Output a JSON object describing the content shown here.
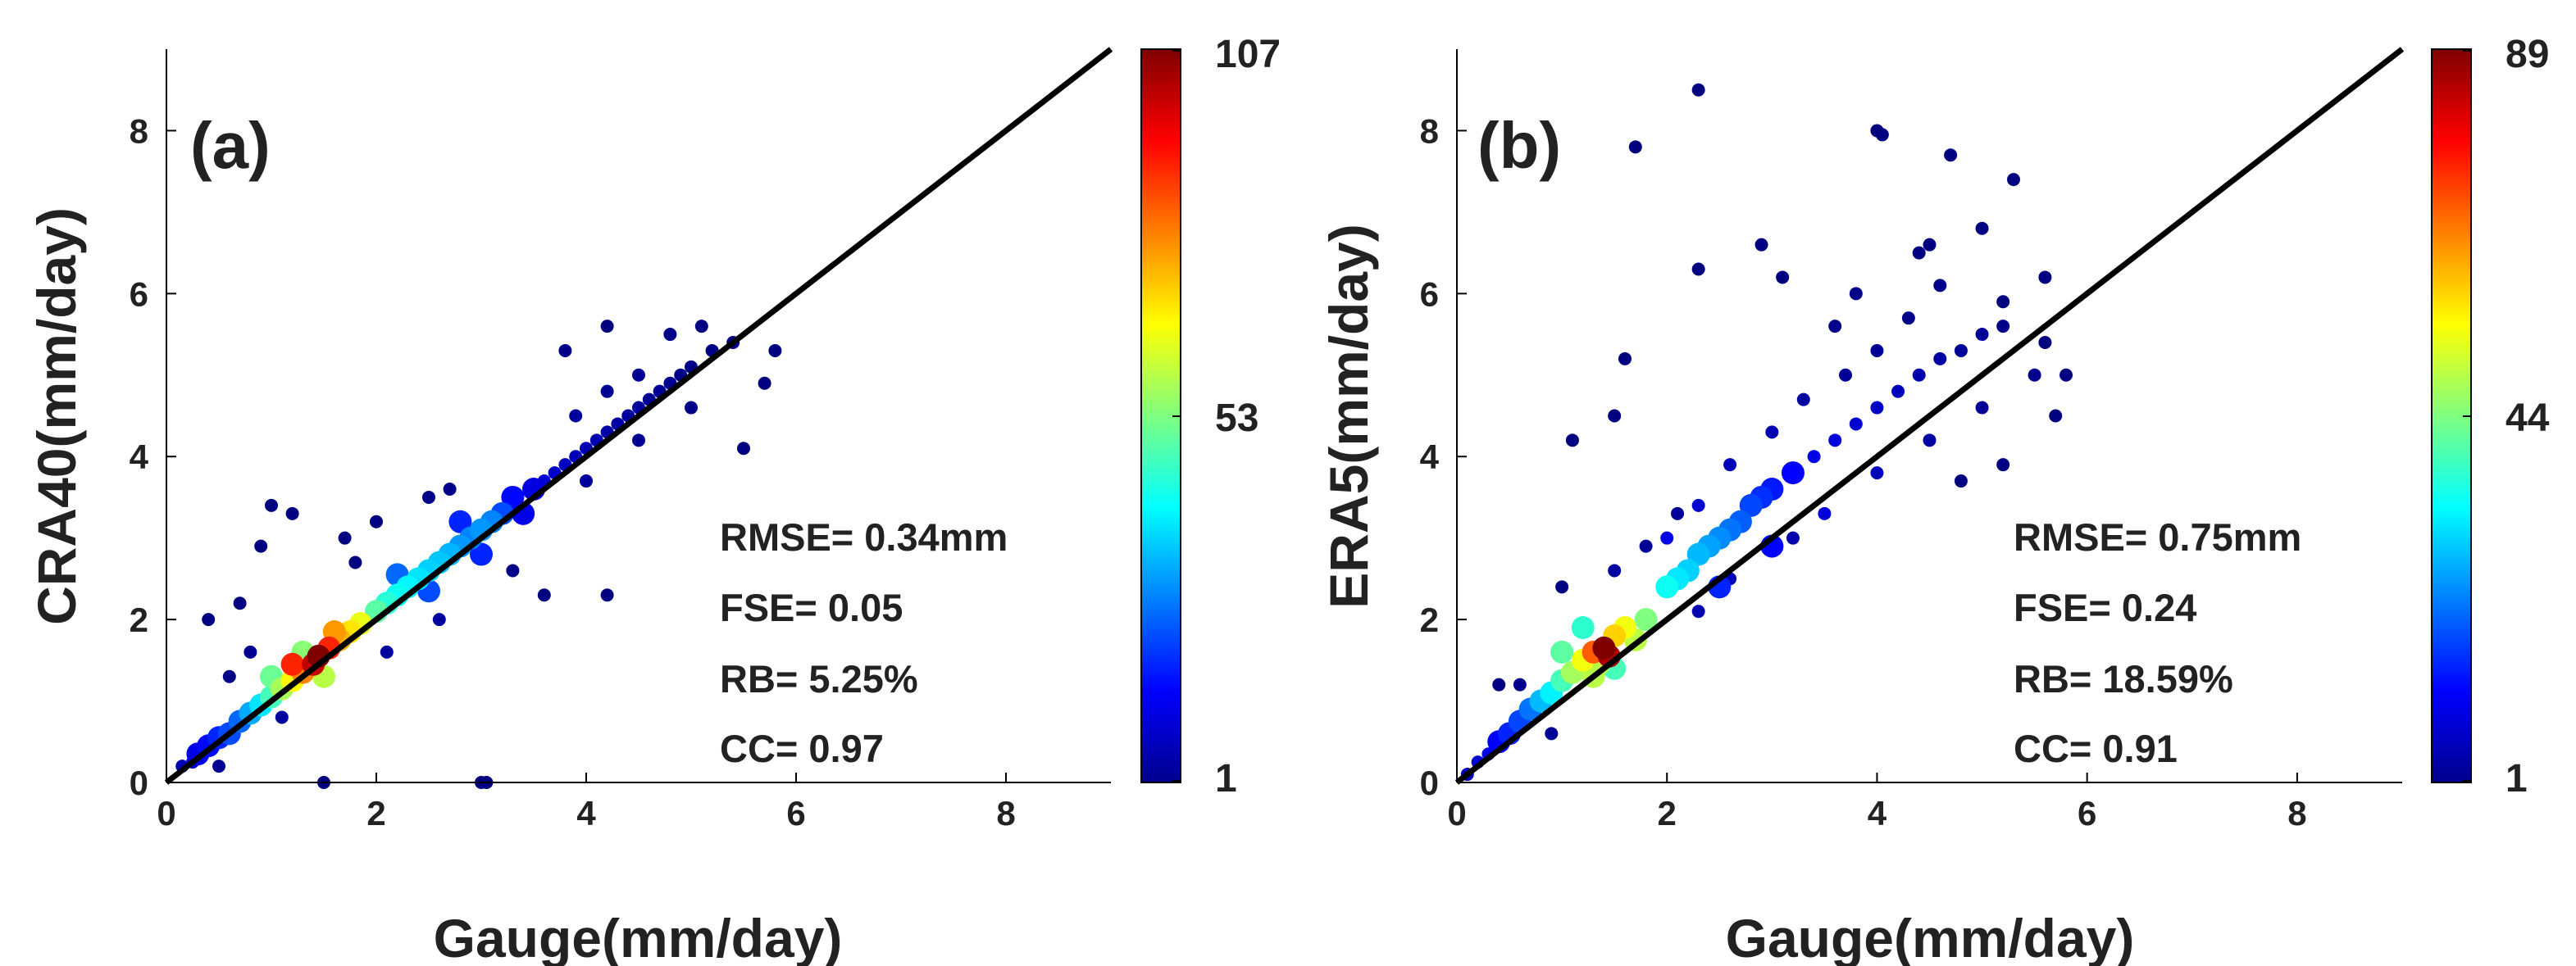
{
  "chart_data": [
    {
      "type": "scatter",
      "panel_label": "(a)",
      "xlabel": "Gauge(mm/day)",
      "ylabel": "CRA40(mm/day)",
      "xlim": [
        0,
        9
      ],
      "ylim": [
        0,
        9
      ],
      "x_ticks": [
        "0",
        "2",
        "4",
        "6",
        "8"
      ],
      "y_ticks": [
        "0",
        "2",
        "4",
        "6",
        "8"
      ],
      "reference_line": {
        "type": "1:1",
        "x": [
          0,
          9
        ],
        "y": [
          0,
          9
        ]
      },
      "stats": [
        "RMSE= 0.34mm",
        "FSE= 0.05",
        "RB= 5.25%",
        "CC= 0.97"
      ],
      "colorbar": {
        "min": 1,
        "mid": 53,
        "max": 107,
        "labels": [
          "107",
          "53",
          "1"
        ],
        "colormap": "jet",
        "meaning": "point density"
      },
      "points": [
        [
          0.15,
          0.2,
          7
        ],
        [
          0.25,
          0.25,
          9
        ],
        [
          0.3,
          0.35,
          12
        ],
        [
          0.4,
          0.45,
          15
        ],
        [
          0.5,
          0.55,
          18
        ],
        [
          0.6,
          0.6,
          22
        ],
        [
          0.7,
          0.75,
          25
        ],
        [
          0.8,
          0.85,
          32
        ],
        [
          0.9,
          0.95,
          38
        ],
        [
          1.0,
          1.05,
          48
        ],
        [
          1.1,
          1.15,
          58
        ],
        [
          1.2,
          1.25,
          68
        ],
        [
          1.3,
          1.35,
          80
        ],
        [
          1.4,
          1.45,
          100
        ],
        [
          1.45,
          1.55,
          107
        ],
        [
          1.55,
          1.65,
          90
        ],
        [
          1.65,
          1.75,
          75
        ],
        [
          1.75,
          1.85,
          70
        ],
        [
          1.85,
          1.95,
          65
        ],
        [
          1.2,
          1.45,
          90
        ],
        [
          1.6,
          1.85,
          78
        ],
        [
          1.0,
          1.3,
          52
        ],
        [
          1.3,
          1.6,
          55
        ],
        [
          1.5,
          1.3,
          60
        ],
        [
          2.0,
          2.1,
          50
        ],
        [
          2.1,
          2.2,
          45
        ],
        [
          2.2,
          2.3,
          42
        ],
        [
          2.3,
          2.4,
          40
        ],
        [
          2.4,
          2.5,
          38
        ],
        [
          2.5,
          2.6,
          36
        ],
        [
          2.6,
          2.7,
          35
        ],
        [
          2.7,
          2.8,
          33
        ],
        [
          2.8,
          2.9,
          30
        ],
        [
          2.9,
          3.0,
          28
        ],
        [
          3.0,
          3.1,
          30
        ],
        [
          3.1,
          3.2,
          28
        ],
        [
          3.2,
          3.3,
          22
        ],
        [
          2.2,
          2.55,
          25
        ],
        [
          2.5,
          2.35,
          22
        ],
        [
          2.8,
          3.2,
          18
        ],
        [
          3.0,
          2.8,
          18
        ],
        [
          3.3,
          3.5,
          15
        ],
        [
          3.4,
          3.3,
          12
        ],
        [
          3.5,
          3.6,
          11
        ],
        [
          3.6,
          3.7,
          10
        ],
        [
          3.7,
          3.8,
          9
        ],
        [
          3.8,
          3.9,
          8
        ],
        [
          3.9,
          4.0,
          7
        ],
        [
          4.0,
          4.1,
          6
        ],
        [
          4.1,
          4.2,
          6
        ],
        [
          4.2,
          4.3,
          5
        ],
        [
          4.3,
          4.4,
          5
        ],
        [
          4.4,
          4.5,
          4
        ],
        [
          4.5,
          4.6,
          4
        ],
        [
          4.6,
          4.7,
          3
        ],
        [
          4.7,
          4.8,
          3
        ],
        [
          4.8,
          4.9,
          3
        ],
        [
          4.9,
          5.0,
          2
        ],
        [
          5.0,
          5.1,
          2
        ],
        [
          5.2,
          5.3,
          2
        ],
        [
          5.4,
          5.4,
          2
        ],
        [
          3.9,
          4.5,
          4
        ],
        [
          4.2,
          4.8,
          3
        ],
        [
          4.5,
          5.0,
          3
        ],
        [
          4.8,
          5.5,
          2
        ],
        [
          4.0,
          3.7,
          4
        ],
        [
          4.5,
          4.2,
          3
        ],
        [
          5.0,
          4.6,
          2
        ],
        [
          3.8,
          5.3,
          2
        ],
        [
          4.2,
          5.6,
          1
        ],
        [
          5.1,
          5.6,
          1
        ],
        [
          5.5,
          4.1,
          1
        ],
        [
          5.8,
          5.3,
          1
        ],
        [
          5.7,
          4.9,
          1
        ],
        [
          0.4,
          2.0,
          1
        ],
        [
          0.7,
          2.2,
          1
        ],
        [
          0.9,
          2.9,
          1
        ],
        [
          1.0,
          3.4,
          1
        ],
        [
          1.2,
          3.3,
          1
        ],
        [
          1.7,
          3.0,
          1
        ],
        [
          1.8,
          2.7,
          1
        ],
        [
          2.0,
          3.2,
          1
        ],
        [
          2.5,
          3.5,
          2
        ],
        [
          2.7,
          3.6,
          2
        ],
        [
          3.3,
          2.6,
          2
        ],
        [
          3.6,
          2.3,
          1
        ],
        [
          4.2,
          2.3,
          1
        ],
        [
          1.5,
          0.0,
          1
        ],
        [
          3.0,
          0.0,
          1
        ],
        [
          3.05,
          0.0,
          1
        ],
        [
          0.6,
          1.3,
          2
        ],
        [
          0.8,
          1.6,
          3
        ],
        [
          1.1,
          0.8,
          4
        ],
        [
          0.5,
          0.2,
          3
        ],
        [
          2.1,
          1.6,
          4
        ],
        [
          2.6,
          2.0,
          4
        ]
      ]
    },
    {
      "type": "scatter",
      "panel_label": "(b)",
      "xlabel": "Gauge(mm/day)",
      "ylabel": "ERA5(mm/day)",
      "xlim": [
        0,
        9
      ],
      "ylim": [
        0,
        9
      ],
      "x_ticks": [
        "0",
        "2",
        "4",
        "6",
        "8"
      ],
      "y_ticks": [
        "0",
        "2",
        "4",
        "6",
        "8"
      ],
      "reference_line": {
        "type": "1:1",
        "x": [
          0,
          9
        ],
        "y": [
          0,
          9
        ]
      },
      "stats": [
        "RMSE= 0.75mm",
        "FSE= 0.24",
        "RB= 18.59%",
        "CC= 0.91"
      ],
      "colorbar": {
        "min": 1,
        "mid": 44,
        "max": 89,
        "labels": [
          "89",
          "44",
          "1"
        ],
        "colormap": "jet",
        "meaning": "point density"
      },
      "points": [
        [
          0.1,
          0.1,
          6
        ],
        [
          0.2,
          0.25,
          8
        ],
        [
          0.3,
          0.35,
          10
        ],
        [
          0.4,
          0.5,
          12
        ],
        [
          0.5,
          0.6,
          15
        ],
        [
          0.6,
          0.75,
          18
        ],
        [
          0.7,
          0.9,
          22
        ],
        [
          0.8,
          1.0,
          28
        ],
        [
          0.9,
          1.1,
          33
        ],
        [
          1.0,
          1.25,
          40
        ],
        [
          1.1,
          1.35,
          48
        ],
        [
          1.2,
          1.5,
          55
        ],
        [
          1.3,
          1.6,
          70
        ],
        [
          1.4,
          1.65,
          89
        ],
        [
          1.45,
          1.55,
          85
        ],
        [
          1.5,
          1.8,
          60
        ],
        [
          1.6,
          1.9,
          55
        ],
        [
          1.7,
          1.75,
          50
        ],
        [
          1.8,
          2.0,
          45
        ],
        [
          1.0,
          1.6,
          42
        ],
        [
          1.2,
          1.9,
          38
        ],
        [
          1.5,
          1.4,
          40
        ],
        [
          1.35,
          1.45,
          50
        ],
        [
          2.0,
          2.4,
          35
        ],
        [
          2.1,
          2.5,
          32
        ],
        [
          2.2,
          2.6,
          30
        ],
        [
          2.3,
          2.8,
          28
        ],
        [
          2.4,
          2.9,
          26
        ],
        [
          2.5,
          3.0,
          24
        ],
        [
          2.6,
          3.1,
          22
        ],
        [
          2.7,
          3.2,
          20
        ],
        [
          2.8,
          3.4,
          18
        ],
        [
          2.9,
          3.5,
          16
        ],
        [
          3.0,
          3.6,
          14
        ],
        [
          3.2,
          3.8,
          12
        ],
        [
          3.4,
          4.0,
          10
        ],
        [
          3.6,
          4.2,
          9
        ],
        [
          3.8,
          4.4,
          8
        ],
        [
          4.0,
          4.6,
          7
        ],
        [
          4.2,
          4.8,
          6
        ],
        [
          4.4,
          5.0,
          5
        ],
        [
          4.6,
          5.2,
          4
        ],
        [
          4.8,
          5.3,
          3
        ],
        [
          5.0,
          5.5,
          3
        ],
        [
          5.2,
          5.6,
          2
        ],
        [
          2.0,
          3.0,
          10
        ],
        [
          2.3,
          3.4,
          8
        ],
        [
          2.6,
          3.9,
          6
        ],
        [
          3.0,
          4.3,
          5
        ],
        [
          3.3,
          4.7,
          4
        ],
        [
          3.7,
          5.0,
          3
        ],
        [
          4.0,
          5.3,
          3
        ],
        [
          4.3,
          5.7,
          2
        ],
        [
          4.6,
          6.1,
          2
        ],
        [
          2.5,
          2.4,
          15
        ],
        [
          3.0,
          2.9,
          12
        ],
        [
          3.5,
          3.3,
          9
        ],
        [
          4.0,
          3.8,
          6
        ],
        [
          4.5,
          4.2,
          4
        ],
        [
          5.0,
          4.6,
          3
        ],
        [
          5.5,
          5.0,
          2
        ],
        [
          3.6,
          5.6,
          2
        ],
        [
          3.8,
          6.0,
          2
        ],
        [
          4.4,
          6.5,
          1
        ],
        [
          4.5,
          6.6,
          1
        ],
        [
          5.3,
          7.4,
          1
        ],
        [
          3.1,
          6.2,
          1
        ],
        [
          2.9,
          6.6,
          1
        ],
        [
          2.3,
          6.3,
          1
        ],
        [
          4.0,
          8.0,
          1
        ],
        [
          4.05,
          7.95,
          1
        ],
        [
          4.7,
          7.7,
          1
        ],
        [
          2.3,
          8.5,
          1
        ],
        [
          1.7,
          7.8,
          1
        ],
        [
          1.6,
          5.2,
          1
        ],
        [
          1.5,
          4.5,
          1
        ],
        [
          1.1,
          4.2,
          1
        ],
        [
          1.0,
          2.4,
          1
        ],
        [
          0.6,
          1.2,
          2
        ],
        [
          0.4,
          1.2,
          1
        ],
        [
          5.0,
          6.8,
          1
        ],
        [
          5.2,
          5.9,
          1
        ],
        [
          5.6,
          6.2,
          1
        ],
        [
          5.6,
          5.4,
          1
        ],
        [
          5.8,
          5.0,
          1
        ],
        [
          5.7,
          4.5,
          1
        ],
        [
          5.2,
          3.9,
          1
        ],
        [
          4.8,
          3.7,
          1
        ],
        [
          2.3,
          2.1,
          5
        ],
        [
          2.6,
          2.5,
          6
        ],
        [
          3.2,
          3.0,
          5
        ],
        [
          1.5,
          2.6,
          4
        ],
        [
          1.8,
          2.9,
          3
        ],
        [
          2.1,
          3.3,
          3
        ],
        [
          1.3,
          1.3,
          50
        ],
        [
          0.9,
          0.6,
          3
        ]
      ]
    }
  ]
}
